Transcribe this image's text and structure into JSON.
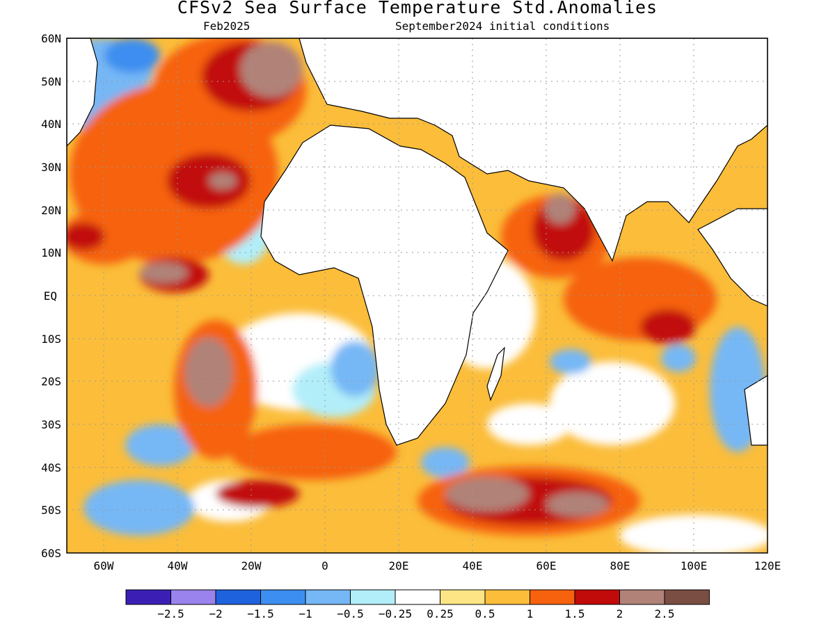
{
  "title": "CFSv2 Sea Surface Temperature Std.Anomalies",
  "subtitle_left": "Feb2025",
  "subtitle_right": "September2024 initial conditions",
  "map": {
    "lon_range": [
      -70,
      120
    ],
    "lat_range": [
      -60,
      60
    ],
    "lat_labels": [
      "60N",
      "50N",
      "40N",
      "30N",
      "20N",
      "10N",
      "EQ",
      "10S",
      "20S",
      "30S",
      "40S",
      "50S",
      "60S"
    ],
    "lon_labels": [
      "60W",
      "40W",
      "20W",
      "0",
      "20E",
      "40E",
      "60E",
      "80E",
      "100E",
      "120E"
    ],
    "grid": "dotted"
  },
  "colorbar": {
    "colors": [
      "#3b1fb5",
      "#9a83ec",
      "#1f62dd",
      "#3c8ef0",
      "#76b7f5",
      "#b2eef9",
      "#ffffff",
      "#fde585",
      "#fbbd3a",
      "#f6620e",
      "#c10a0a",
      "#b08278",
      "#7a4e43"
    ],
    "labels": [
      "-2.5",
      "-2",
      "-1.5",
      "-1",
      "-0.5",
      "-0.25",
      "0.25",
      "0.5",
      "1",
      "1.5",
      "2",
      "2.5"
    ]
  }
}
